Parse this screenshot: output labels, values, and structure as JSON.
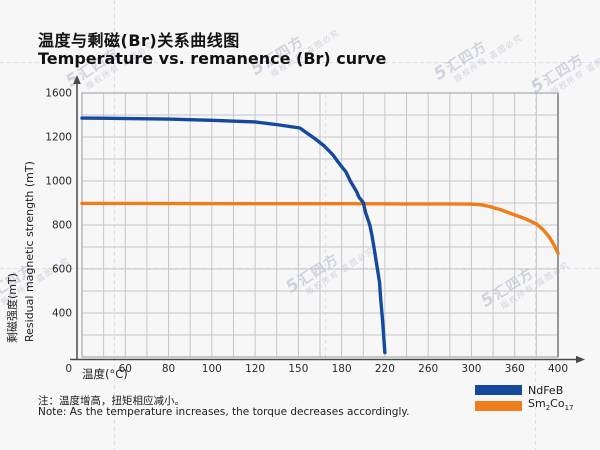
{
  "title": {
    "cn": "温度与剩磁(Br)关系曲线图",
    "en": "Temperature vs. remanence (Br) curve"
  },
  "axes": {
    "y_label_cn": "剩磁强度(mT)",
    "y_label_en": "Residual magnetic strength (mT)",
    "x_label": "温度(°C)",
    "origin_label": "0"
  },
  "legend": {
    "items": [
      {
        "label": "NdFeB",
        "color": "#15499d",
        "parts": [
          "NdFeB",
          "",
          "",
          ""
        ]
      },
      {
        "label": "Sm2Co17",
        "color": "#ee7d1b",
        "parts": [
          "Sm",
          "2",
          "Co",
          "17"
        ]
      }
    ]
  },
  "note": {
    "cn": "注：温度增高，扭矩相应减小。",
    "en": "Note: As the temperature increases, the torque decreases accordingly."
  },
  "watermark": {
    "logo": "5",
    "brand": "汇四方",
    "notice": "版权所有 盗图必究"
  },
  "colors": {
    "ndfeb": "#15499d",
    "sm2co17": "#ee7d1b",
    "grid": "#c6c6c8",
    "grid_border": "#a9a9ab",
    "axis": "#4a4a4c",
    "tick_text": "#28282a",
    "background": "#f7f7f8",
    "guide": "#9db8dc"
  },
  "chart_data": {
    "type": "line",
    "title": "温度与剩磁(Br)关系曲线图 / Temperature vs. remanence (Br) curve",
    "xlabel": "温度(°C)",
    "ylabel": "剩磁强度(mT) / Residual magnetic strength (mT)",
    "grid": true,
    "legend_position": "bottom-right",
    "x_ticks": [
      0,
      60,
      80,
      100,
      120,
      150,
      180,
      220,
      260,
      300,
      360,
      400
    ],
    "y_ticks": [
      1600,
      1200,
      1000,
      800,
      600,
      400,
      0
    ],
    "series": [
      {
        "name": "NdFeB",
        "color": "#15499d",
        "points": [
          [
            0,
            1372
          ],
          [
            40,
            1370
          ],
          [
            80,
            1363
          ],
          [
            100,
            1352
          ],
          [
            120,
            1337
          ],
          [
            137,
            1309
          ],
          [
            151,
            1282
          ],
          [
            155,
            1245
          ],
          [
            161,
            1195
          ],
          [
            168,
            1159
          ],
          [
            174,
            1118
          ],
          [
            178,
            1082
          ],
          [
            184,
            1041
          ],
          [
            188,
            1000
          ],
          [
            194,
            950
          ],
          [
            196,
            927
          ],
          [
            200,
            902
          ],
          [
            202,
            859
          ],
          [
            206,
            800
          ],
          [
            208,
            754
          ],
          [
            210,
            695
          ],
          [
            212,
            632
          ],
          [
            215,
            541
          ],
          [
            216,
            468
          ],
          [
            218,
            318
          ],
          [
            219,
            173
          ],
          [
            220,
            40
          ]
        ]
      },
      {
        "name": "Sm2Co17",
        "color": "#ee7d1b",
        "points": [
          [
            0,
            898
          ],
          [
            60,
            898
          ],
          [
            120,
            897
          ],
          [
            180,
            897
          ],
          [
            240,
            896
          ],
          [
            280,
            896
          ],
          [
            300,
            895
          ],
          [
            313,
            892
          ],
          [
            325,
            884
          ],
          [
            340,
            870
          ],
          [
            355,
            852
          ],
          [
            370,
            828
          ],
          [
            380,
            805
          ],
          [
            386,
            780
          ],
          [
            392,
            745
          ],
          [
            396,
            712
          ],
          [
            400,
            672
          ]
        ]
      }
    ]
  }
}
